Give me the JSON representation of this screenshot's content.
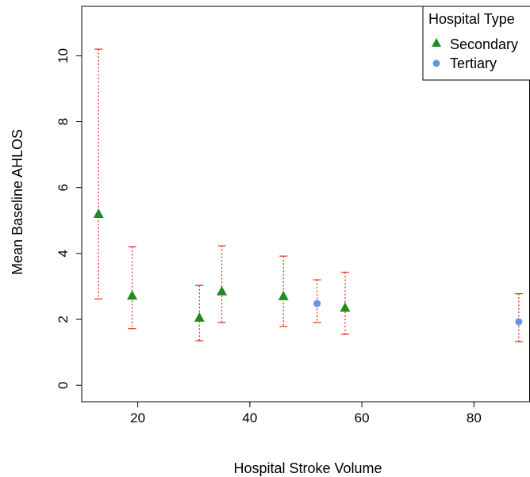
{
  "chart_data": {
    "type": "scatter",
    "title": "",
    "xlabel": "Hospital Stroke Volume",
    "ylabel": "Mean Baseline AHLOS",
    "xlim": [
      10,
      90
    ],
    "ylim": [
      -0.5,
      11.5
    ],
    "xticks": [
      20,
      40,
      60,
      80
    ],
    "yticks": [
      0,
      2,
      4,
      6,
      8,
      10
    ],
    "grid": false,
    "legend": {
      "title": "Hospital Type",
      "placement": "top-right",
      "entries": [
        {
          "label": "Secondary",
          "marker": "triangle",
          "color": "#228B22"
        },
        {
          "label": "Tertiary",
          "marker": "circle",
          "color": "#6495ED"
        }
      ]
    },
    "error_bar_color": "#E8382A",
    "series": [
      {
        "name": "Secondary",
        "marker": "triangle",
        "color": "#228B22",
        "points": [
          {
            "x": 13,
            "y": 5.2,
            "lo": 2.62,
            "hi": 10.2
          },
          {
            "x": 19,
            "y": 2.72,
            "lo": 1.72,
            "hi": 4.2
          },
          {
            "x": 31,
            "y": 2.05,
            "lo": 1.35,
            "hi": 3.03
          },
          {
            "x": 35,
            "y": 2.85,
            "lo": 1.9,
            "hi": 4.23
          },
          {
            "x": 46,
            "y": 2.7,
            "lo": 1.78,
            "hi": 3.92
          },
          {
            "x": 57,
            "y": 2.35,
            "lo": 1.55,
            "hi": 3.43
          }
        ]
      },
      {
        "name": "Tertiary",
        "marker": "circle",
        "color": "#6495ED",
        "points": [
          {
            "x": 52,
            "y": 2.48,
            "lo": 1.9,
            "hi": 3.2
          },
          {
            "x": 88,
            "y": 1.93,
            "lo": 1.32,
            "hi": 2.78
          }
        ]
      }
    ]
  }
}
